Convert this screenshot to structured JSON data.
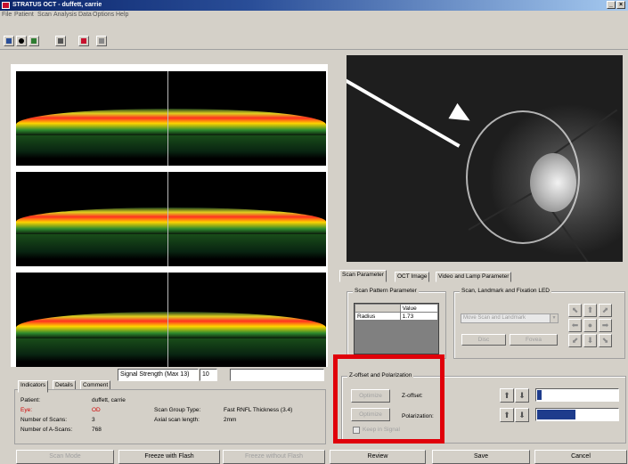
{
  "window": {
    "title": "STRATUS OCT - duffett, carrie",
    "min_label": "_",
    "close_label": "×"
  },
  "menu": [
    "File",
    "Patient",
    "Scan",
    "Analysis",
    "Data",
    "Options",
    "Help"
  ],
  "toolbar_icons": [
    "people-icon",
    "eye-icon",
    "image-icon",
    "printer-icon",
    "home-icon",
    "document-icon"
  ],
  "tabs": {
    "scan_parameter": "Scan Parameter",
    "oct_image": "OCT Image",
    "video_lamp": "Video and Lamp Parameter"
  },
  "scan_pattern": {
    "title": "Scan Pattern Parameter",
    "value_header": "Value",
    "row_label": "Radius",
    "row_value": "1.73"
  },
  "landmark": {
    "title": "Scan, Landmark and Fixation LED",
    "dropdown": "Move Scan and Landmark",
    "disc_button": "Disc",
    "fovea_button": "Fovea"
  },
  "zoffset": {
    "title": "Z-offset and Polarization",
    "optimize_label": "Optimize",
    "zoffset_label": "Z-offset:",
    "polarization_label": "Polarization:",
    "keep_signal_label": "Keep in Signal"
  },
  "sliders": {
    "zoffset_level": 0.05,
    "polarization_level": 0.48
  },
  "signal": {
    "label": "Signal Strength (Max 13)",
    "value": "10",
    "extra": ""
  },
  "info_tabs": [
    "Indicators",
    "Details",
    "Comment"
  ],
  "patient_info": {
    "patient_label": "Patient:",
    "patient_value": "duffett, carrie",
    "eye_label": "Eye:",
    "eye_value": "OD",
    "scans_label": "Number of Scans:",
    "scans_value": "3",
    "ascans_label": "Number of A-Scans:",
    "ascans_value": "768",
    "group_label": "Scan Group Type:",
    "group_value": "Fast RNFL Thickness (3.4)",
    "axial_label": "Axial scan length:",
    "axial_value": "2mm"
  },
  "bottom_buttons": {
    "scan_mode": "Scan Mode",
    "freeze_flash": "Freeze with Flash",
    "freeze_noflash": "Freeze without Flash",
    "review": "Review",
    "save": "Save",
    "cancel": "Cancel"
  },
  "colors": {
    "highlight": "#e0000a",
    "progress": "#1e3c8c"
  }
}
